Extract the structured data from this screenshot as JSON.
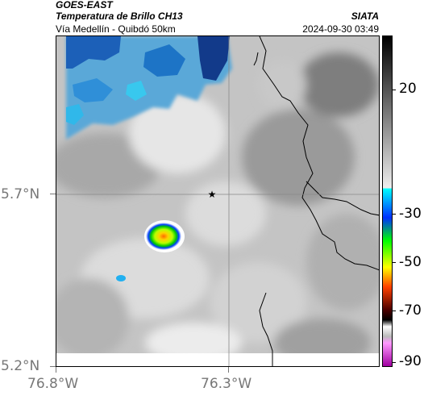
{
  "header": {
    "satellite": "GOES-EAST",
    "product": "Temperatura de Brillo CH13",
    "region": "Vía Medellín - Quibdó 50km",
    "brand": "SIATA",
    "timestamp": "2024-09-30 03:49"
  },
  "map": {
    "lat_labels": [
      "5.7°N",
      "5.2°N"
    ],
    "lon_labels": [
      "76.8°W",
      "76.3°W"
    ],
    "marker_icon": "star-icon",
    "gridline_color": "#888888",
    "border_color": "#000000"
  },
  "colorbar": {
    "tick_labels": [
      "20",
      "-30",
      "-50",
      "-70",
      "-90"
    ],
    "stops": [
      "#000000",
      "#ffffff",
      "#00ffff",
      "#0000ff",
      "#00ff00",
      "#ffff00",
      "#ff0000",
      "#550000",
      "#ffffff",
      "#ff00ff"
    ]
  }
}
